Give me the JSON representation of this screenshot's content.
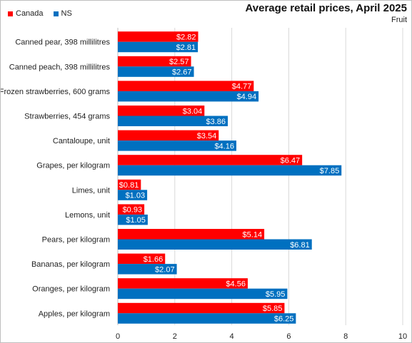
{
  "legend": {
    "canada_label": "Canada",
    "ns_label": "NS"
  },
  "colors": {
    "canada": "#ff0000",
    "ns": "#0070c0",
    "grid": "#d9d9d9"
  },
  "chart_data": {
    "type": "bar",
    "orientation": "horizontal",
    "title": "Average retail prices, April 2025",
    "subtitle": "Fruit",
    "xlabel": "",
    "ylabel": "",
    "xlim": [
      0,
      10
    ],
    "x_ticks": [
      "0",
      "2",
      "4",
      "6",
      "8",
      "10"
    ],
    "grid": true,
    "legend_position": "top-left",
    "categories": [
      "Canned pear, 398 millilitres",
      "Canned peach, 398 millilitres",
      "Frozen strawberries, 600 grams",
      "Strawberries, 454 grams",
      "Cantaloupe, unit",
      "Grapes, per kilogram",
      "Limes, unit",
      "Lemons, unit",
      "Pears, per kilogram",
      "Bananas, per kilogram",
      "Oranges, per kilogram",
      "Apples, per kilogram"
    ],
    "series": [
      {
        "name": "Canada",
        "values": [
          2.82,
          2.57,
          4.77,
          3.04,
          3.54,
          6.47,
          0.81,
          0.93,
          5.14,
          1.66,
          4.56,
          5.85
        ],
        "labels": [
          "$2.82",
          "$2.57",
          "$4.77",
          "$3.04",
          "$3.54",
          "$6.47",
          "$0.81",
          "$0.93",
          "$5.14",
          "$1.66",
          "$4.56",
          "$5.85"
        ]
      },
      {
        "name": "NS",
        "values": [
          2.81,
          2.67,
          4.94,
          3.86,
          4.16,
          7.85,
          1.03,
          1.05,
          6.81,
          2.07,
          5.95,
          6.25
        ],
        "labels": [
          "$2.81",
          "$2.67",
          "$4.94",
          "$3.86",
          "$4.16",
          "$7.85",
          "$1.03",
          "$1.05",
          "$6.81",
          "$2.07",
          "$5.95",
          "$6.25"
        ]
      }
    ]
  }
}
